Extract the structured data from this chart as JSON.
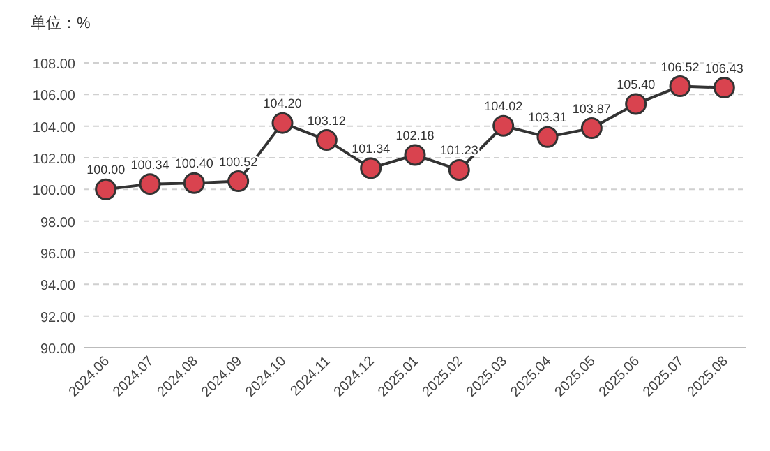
{
  "chart_data": {
    "type": "line",
    "ylabel": "单位：%",
    "categories": [
      "2024.06",
      "2024.07",
      "2024.08",
      "2024.09",
      "2024.10",
      "2024.11",
      "2024.12",
      "2025.01",
      "2025.02",
      "2025.03",
      "2025.04",
      "2025.05",
      "2025.06",
      "2025.07",
      "2025.08"
    ],
    "series": [
      {
        "color": "#d9434f",
        "values": [
          100.0,
          100.34,
          100.4,
          100.52,
          104.2,
          103.12,
          101.34,
          102.18,
          101.23,
          104.02,
          103.31,
          103.87,
          105.4,
          106.52,
          106.43
        ],
        "value_labels": [
          "100.00",
          "100.34",
          "100.40",
          "100.52",
          "104.20",
          "103.12",
          "101.34",
          "102.18",
          "101.23",
          "104.02",
          "103.31",
          "103.87",
          "105.40",
          "106.52",
          "106.43"
        ]
      }
    ],
    "ylim": [
      90,
      108
    ],
    "yticks": [
      {
        "value": 90,
        "label": "90.00"
      },
      {
        "value": 92,
        "label": "92.00"
      },
      {
        "value": 94,
        "label": "94.00"
      },
      {
        "value": 96,
        "label": "96.00"
      },
      {
        "value": 98,
        "label": "98.00"
      },
      {
        "value": 100,
        "label": "100.00"
      },
      {
        "value": 102,
        "label": "102.00"
      },
      {
        "value": 104,
        "label": "104.00"
      },
      {
        "value": 106,
        "label": "106.00"
      },
      {
        "value": 108,
        "label": "108.00"
      }
    ],
    "grid": "y",
    "marker": "circle",
    "line_style": "solid"
  }
}
